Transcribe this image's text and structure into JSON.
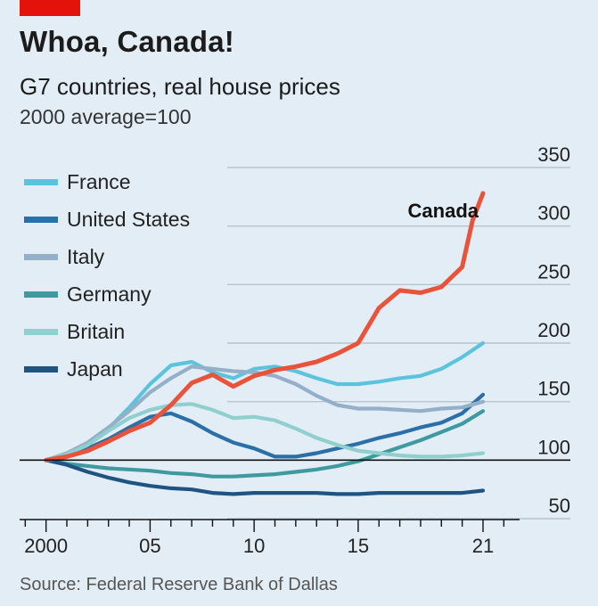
{
  "header": {
    "title": "Whoa, Canada!",
    "subtitle": "G7 countries, real house prices",
    "unit": "2000 average=100"
  },
  "footer": {
    "source": "Source: Federal Reserve Bank of Dallas"
  },
  "colors": {
    "accent": "#e3120b",
    "background": "#e3edf5"
  },
  "chart_data": {
    "type": "line",
    "title": "Whoa, Canada!",
    "subtitle": "G7 countries, real house prices",
    "ylabel": "2000 average=100",
    "xlabel": "",
    "ylim": [
      50,
      350
    ],
    "xlim": [
      1999.5,
      2022.2
    ],
    "y_ticks": [
      50,
      100,
      150,
      200,
      250,
      300,
      350
    ],
    "x_ticks": [
      {
        "value": 2000,
        "label": "2000"
      },
      {
        "value": 2005,
        "label": "05"
      },
      {
        "value": 2010,
        "label": "10"
      },
      {
        "value": 2015,
        "label": "15"
      },
      {
        "value": 2021,
        "label": "21"
      }
    ],
    "baseline": 100,
    "grid": true,
    "legend_position": "top-left",
    "annotations": [
      {
        "text": "Canada",
        "series": "Canada"
      }
    ],
    "series": [
      {
        "name": "France",
        "color": "#5bc3dc",
        "x": [
          2000,
          2001,
          2002,
          2003,
          2004,
          2005,
          2006,
          2007,
          2008,
          2009,
          2010,
          2011,
          2012,
          2013,
          2014,
          2015,
          2016,
          2017,
          2018,
          2019,
          2020,
          2021
        ],
        "values": [
          100,
          104,
          113,
          127,
          145,
          165,
          181,
          184,
          175,
          170,
          178,
          180,
          176,
          170,
          165,
          165,
          167,
          170,
          172,
          178,
          188,
          200
        ]
      },
      {
        "name": "United States",
        "color": "#2a6fa8",
        "x": [
          2000,
          2001,
          2002,
          2003,
          2004,
          2005,
          2006,
          2007,
          2008,
          2009,
          2010,
          2011,
          2012,
          2013,
          2014,
          2015,
          2016,
          2017,
          2018,
          2019,
          2020,
          2021
        ],
        "values": [
          100,
          104,
          110,
          118,
          128,
          137,
          140,
          133,
          123,
          115,
          110,
          103,
          103,
          106,
          110,
          114,
          119,
          123,
          128,
          132,
          140,
          156
        ]
      },
      {
        "name": "Italy",
        "color": "#94afc8",
        "x": [
          2000,
          2001,
          2002,
          2003,
          2004,
          2005,
          2006,
          2007,
          2008,
          2009,
          2010,
          2011,
          2012,
          2013,
          2014,
          2015,
          2016,
          2017,
          2018,
          2019,
          2020,
          2021
        ],
        "values": [
          100,
          106,
          115,
          128,
          142,
          158,
          170,
          180,
          178,
          176,
          175,
          172,
          165,
          155,
          147,
          144,
          144,
          143,
          142,
          144,
          145,
          150
        ]
      },
      {
        "name": "Germany",
        "color": "#3f9aa0",
        "x": [
          2000,
          2001,
          2002,
          2003,
          2004,
          2005,
          2006,
          2007,
          2008,
          2009,
          2010,
          2011,
          2012,
          2013,
          2014,
          2015,
          2016,
          2017,
          2018,
          2019,
          2020,
          2021
        ],
        "values": [
          100,
          97,
          95,
          93,
          92,
          91,
          89,
          88,
          86,
          86,
          87,
          88,
          90,
          92,
          95,
          99,
          105,
          111,
          117,
          124,
          131,
          142
        ]
      },
      {
        "name": "Britain",
        "color": "#8fd0cf",
        "x": [
          2000,
          2001,
          2002,
          2003,
          2004,
          2005,
          2006,
          2007,
          2008,
          2009,
          2010,
          2011,
          2012,
          2013,
          2014,
          2015,
          2016,
          2017,
          2018,
          2019,
          2020,
          2021
        ],
        "values": [
          100,
          105,
          113,
          125,
          136,
          143,
          147,
          148,
          143,
          136,
          137,
          134,
          127,
          119,
          113,
          108,
          106,
          104,
          103,
          103,
          104,
          106
        ]
      },
      {
        "name": "Japan",
        "color": "#1f5482",
        "x": [
          2000,
          2001,
          2002,
          2003,
          2004,
          2005,
          2006,
          2007,
          2008,
          2009,
          2010,
          2011,
          2012,
          2013,
          2014,
          2015,
          2016,
          2017,
          2018,
          2019,
          2020,
          2021
        ],
        "values": [
          100,
          96,
          90,
          85,
          81,
          78,
          76,
          75,
          72,
          71,
          72,
          72,
          72,
          72,
          71,
          71,
          72,
          72,
          72,
          72,
          72,
          74
        ]
      },
      {
        "name": "Canada",
        "color": "#e8533a",
        "x": [
          2000,
          2001,
          2002,
          2003,
          2004,
          2005,
          2006,
          2007,
          2008,
          2009,
          2010,
          2011,
          2012,
          2013,
          2014,
          2015,
          2016,
          2017,
          2018,
          2019,
          2020,
          2020.5,
          2021
        ],
        "values": [
          100,
          103,
          108,
          116,
          125,
          132,
          147,
          166,
          173,
          163,
          172,
          177,
          180,
          184,
          191,
          200,
          230,
          245,
          243,
          248,
          265,
          305,
          328
        ]
      }
    ]
  }
}
